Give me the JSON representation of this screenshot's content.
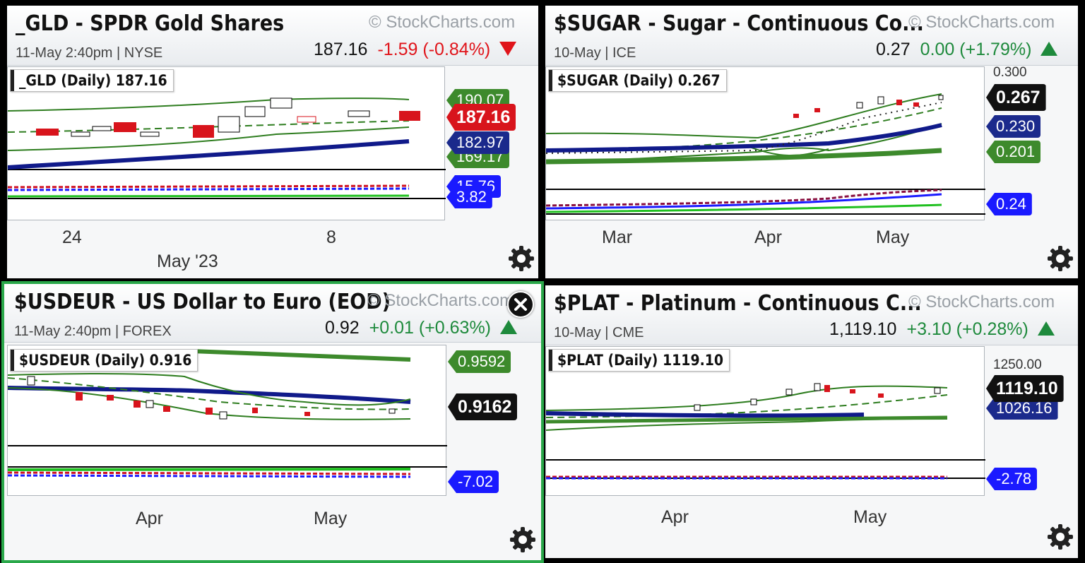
{
  "tiles": [
    {
      "title": "_GLD - SPDR Gold Shares",
      "watermark": "© StockCharts.com",
      "subtitle": "11-May 2:40pm | NYSE",
      "price": "187.16",
      "change": "-1.59 (-0.84%)",
      "direction": "down",
      "chart_label": "_GLD (Daily) 187.16",
      "tags": {
        "upper": "190.07",
        "last": "187.16",
        "ma": "182.97",
        "lower": "169.17",
        "ind_hidden": "15.76",
        "ind": "3.82"
      },
      "x_labels": [
        "24",
        "8"
      ],
      "x_sublabel": "May '23",
      "y_labels": []
    },
    {
      "title": "$SUGAR - Sugar - Continuous Co...",
      "watermark": "© StockCharts.com",
      "subtitle": "10-May | ICE",
      "price": "0.27",
      "change": "0.00 (+1.79%)",
      "direction": "up",
      "chart_label": "$SUGAR (Daily) 0.267",
      "tags": {
        "last": "0.267",
        "ma": "0.230",
        "ma2": "0.201",
        "ind": "0.24"
      },
      "x_labels": [
        "Mar",
        "Apr",
        "May"
      ],
      "x_sublabel": "",
      "y_labels": [
        "0.300"
      ]
    },
    {
      "title": "$USDEUR - US Dollar to Euro (EOD)",
      "watermark": "© StockCharts.com",
      "subtitle": "11-May 2:40pm | FOREX",
      "price": "0.92",
      "change": "+0.01 (+0.63%)",
      "direction": "up",
      "chart_label": "$USDEUR (Daily) 0.916",
      "tags": {
        "ma2": "0.9592",
        "last": "0.9162",
        "ind": "-7.02"
      },
      "x_labels": [
        "Apr",
        "May"
      ],
      "x_sublabel": "",
      "y_labels": []
    },
    {
      "title": "$PLAT - Platinum - Continuous C...",
      "watermark": "© StockCharts.com",
      "subtitle": "10-May | CME",
      "price": "1,119.10",
      "change": "+3.10 (+0.28%)",
      "direction": "up",
      "chart_label": "$PLAT (Daily) 1119.10",
      "tags": {
        "last": "1119.10",
        "ma": "1026.16",
        "ind": "-2.78"
      },
      "x_labels": [
        "Apr",
        "May"
      ],
      "x_sublabel": "",
      "y_labels": [
        "1250.00"
      ]
    }
  ],
  "colors": {
    "down": "#e0141a",
    "up": "#1e8a3c",
    "green_tag": "#3d8a2c",
    "blue_tag": "#1b2a8c",
    "red_tag": "#d8141c",
    "black_tag": "#111111",
    "bright_blue": "#1a1aff",
    "selection": "#2aa84a"
  },
  "icons": {
    "gear": "gear-icon",
    "close": "close-icon",
    "down": "triangle-down-icon",
    "up": "triangle-up-icon"
  }
}
